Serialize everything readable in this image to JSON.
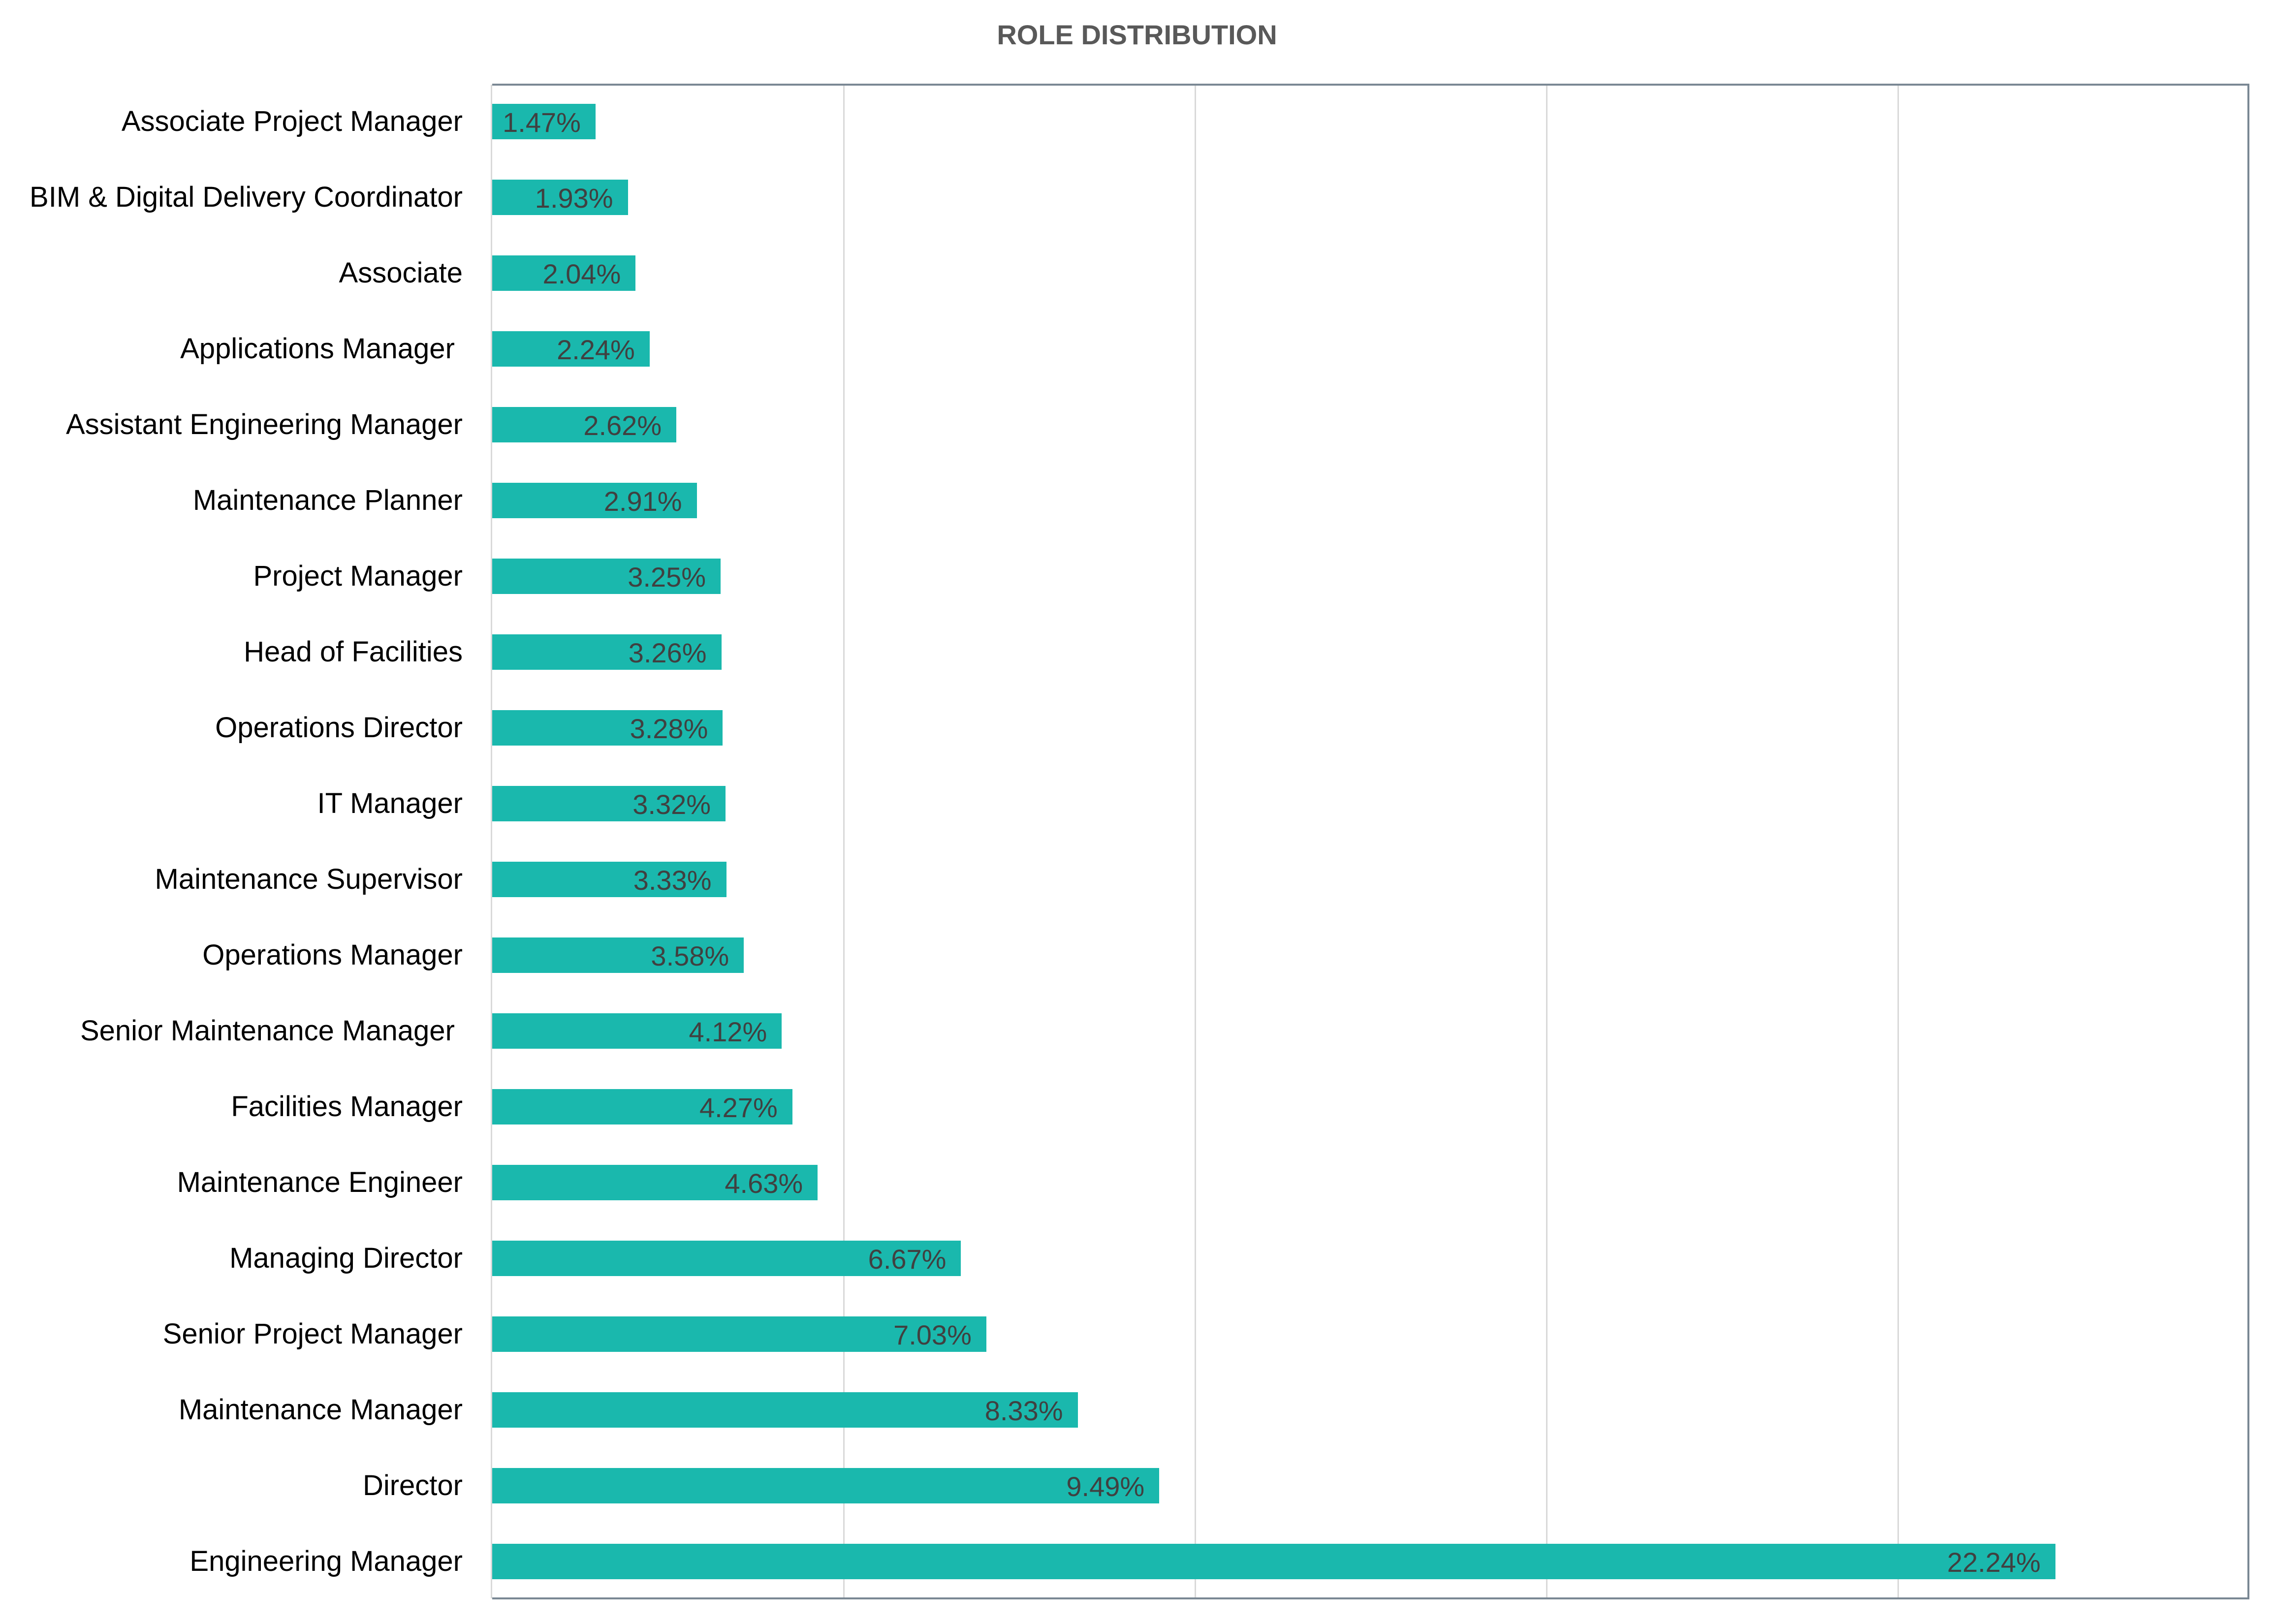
{
  "chart_data": {
    "type": "bar",
    "orientation": "horizontal",
    "title": "ROLE DISTRIBUTION",
    "xlabel": "",
    "ylabel": "",
    "xlim": [
      0,
      25
    ],
    "x_gridlines": [
      5,
      10,
      15,
      20
    ],
    "grid": true,
    "legend": null,
    "value_format": "percent",
    "bar_color": "#1ab8ad",
    "categories": [
      "Associate Project Manager",
      "BIM & Digital Delivery Coordinator",
      "Associate",
      "Applications Manager ",
      "Assistant Engineering Manager",
      "Maintenance Planner",
      "Project Manager",
      "Head of Facilities",
      "Operations Director",
      "IT Manager",
      "Maintenance Supervisor",
      "Operations Manager",
      "Senior Maintenance Manager ",
      "Facilities Manager",
      "Maintenance Engineer",
      "Managing Director",
      "Senior Project Manager",
      "Maintenance Manager",
      "Director",
      "Engineering Manager"
    ],
    "values": [
      1.47,
      1.93,
      2.04,
      2.24,
      2.62,
      2.91,
      3.25,
      3.26,
      3.28,
      3.32,
      3.33,
      3.58,
      4.12,
      4.27,
      4.63,
      6.67,
      7.03,
      8.33,
      9.49,
      22.24
    ],
    "labels": [
      "1.47%",
      "1.93%",
      "2.04%",
      "2.24%",
      "2.62%",
      "2.91%",
      "3.25%",
      "3.26%",
      "3.28%",
      "3.32%",
      "3.33%",
      "3.58%",
      "4.12%",
      "4.27%",
      "4.63%",
      "6.67%",
      "7.03%",
      "8.33%",
      "9.49%",
      "22.24%"
    ]
  },
  "colors": {
    "bar": "#1ab8ad",
    "title": "#595959",
    "value_label": "#404040",
    "category_label": "#000000",
    "gridline": "#d9d9d9",
    "plot_border": "#7a8894"
  }
}
